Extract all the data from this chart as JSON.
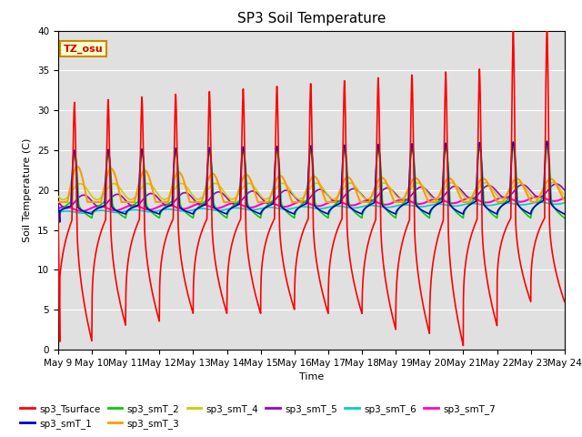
{
  "title": "SP3 Soil Temperature",
  "xlabel": "Time",
  "ylabel": "Soil Temperature (C)",
  "ylim": [
    0,
    40
  ],
  "xlim": [
    0,
    15
  ],
  "x_tick_labels": [
    "May 9",
    "May 10",
    "May 11",
    "May 12",
    "May 13",
    "May 14",
    "May 15",
    "May 16",
    "May 17",
    "May 18",
    "May 19",
    "May 20",
    "May 21",
    "May 22",
    "May 23",
    "May 24"
  ],
  "annotation_text": "TZ_osu",
  "background_color": "#e0e0e0",
  "series": {
    "sp3_Tsurface": {
      "color": "#ff0000",
      "lw": 1.2
    },
    "sp3_smT_1": {
      "color": "#0000cc",
      "lw": 1.2
    },
    "sp3_smT_2": {
      "color": "#00cc00",
      "lw": 1.2
    },
    "sp3_smT_3": {
      "color": "#ff9900",
      "lw": 1.5
    },
    "sp3_smT_4": {
      "color": "#cccc00",
      "lw": 1.2
    },
    "sp3_smT_5": {
      "color": "#9900cc",
      "lw": 1.2
    },
    "sp3_smT_6": {
      "color": "#00cccc",
      "lw": 1.2
    },
    "sp3_smT_7": {
      "color": "#ff00cc",
      "lw": 1.5
    }
  },
  "legend_order": [
    "sp3_Tsurface",
    "sp3_smT_1",
    "sp3_smT_2",
    "sp3_smT_3",
    "sp3_smT_4",
    "sp3_smT_5",
    "sp3_smT_6",
    "sp3_smT_7"
  ],
  "legend_ncol": 6
}
